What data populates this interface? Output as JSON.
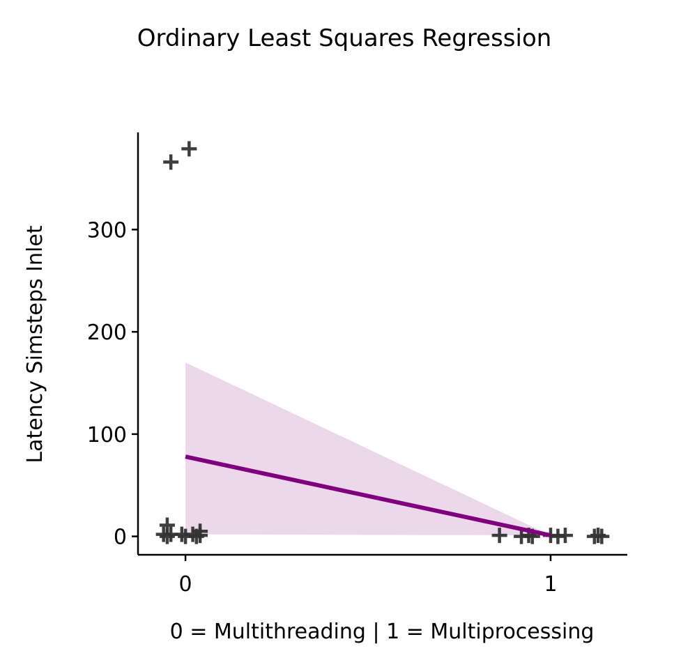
{
  "chart_data": {
    "type": "scatter",
    "title": "Ordinary Least Squares Regression",
    "xlabel": "0 = Multithreading | 1 = Multiprocessing",
    "ylabel": "Latency Simsteps Inlet",
    "xlim": [
      -0.13,
      1.21
    ],
    "ylim": [
      -18,
      395
    ],
    "xticks": [
      0,
      1
    ],
    "yticks": [
      0,
      100,
      200,
      300
    ],
    "grid": false,
    "legend": "none",
    "series": [
      {
        "kind": "scatter",
        "marker": "+",
        "color": "#333333",
        "points": [
          {
            "x": -0.04,
            "y": 366
          },
          {
            "x": 0.01,
            "y": 379
          },
          {
            "x": -0.06,
            "y": 2
          },
          {
            "x": -0.05,
            "y": 0
          },
          {
            "x": -0.04,
            "y": 2
          },
          {
            "x": -0.05,
            "y": 11
          },
          {
            "x": -0.01,
            "y": 2
          },
          {
            "x": 0.0,
            "y": 0
          },
          {
            "x": 0.02,
            "y": 2
          },
          {
            "x": 0.03,
            "y": 0
          },
          {
            "x": 0.04,
            "y": 5
          },
          {
            "x": 0.04,
            "y": 1
          },
          {
            "x": 0.86,
            "y": 1
          },
          {
            "x": 0.92,
            "y": 0
          },
          {
            "x": 0.94,
            "y": 1
          },
          {
            "x": 0.95,
            "y": 0
          },
          {
            "x": 1.0,
            "y": 1
          },
          {
            "x": 1.02,
            "y": 0
          },
          {
            "x": 1.04,
            "y": 1
          },
          {
            "x": 1.12,
            "y": 0
          },
          {
            "x": 1.13,
            "y": 1
          },
          {
            "x": 1.14,
            "y": 0
          }
        ]
      },
      {
        "kind": "regression",
        "color": "#800080",
        "x": [
          0,
          1
        ],
        "y": [
          78,
          1
        ],
        "ci_lower": [
          2,
          1
        ],
        "ci_upper": [
          170,
          1
        ],
        "ci_color": "#d8b2d8"
      }
    ]
  }
}
